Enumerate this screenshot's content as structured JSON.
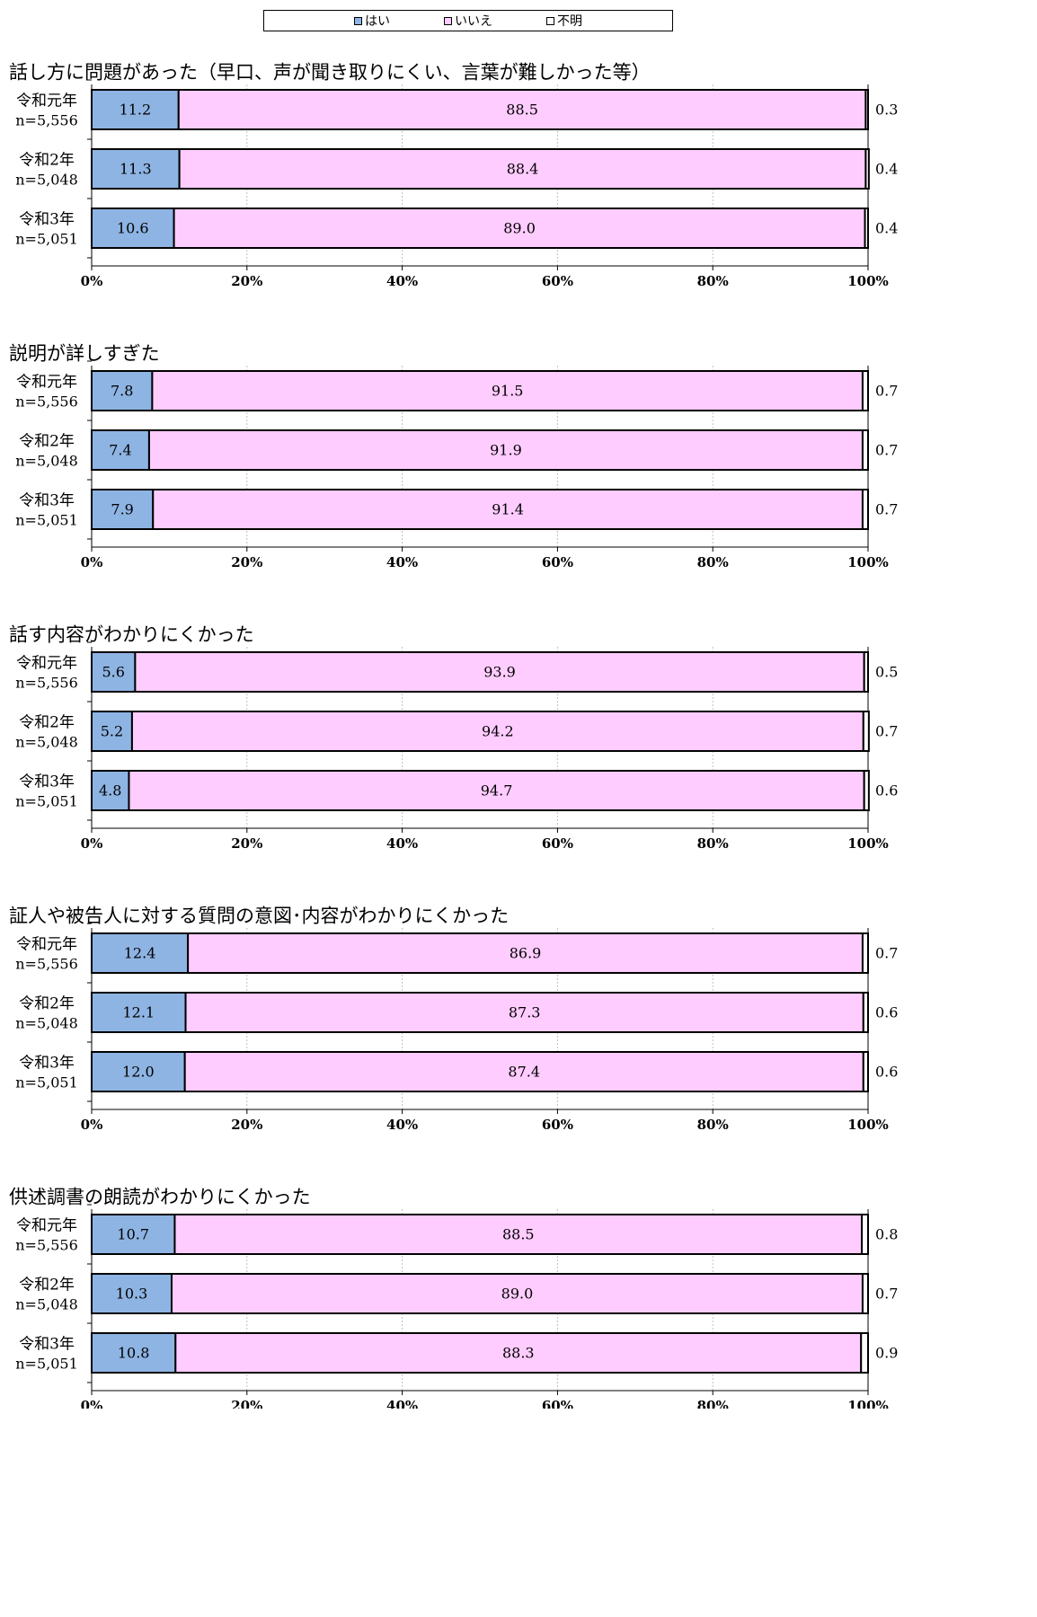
{
  "legend": [
    {
      "label": "はい",
      "color": "#8EB4E3"
    },
    {
      "label": "いいえ",
      "color": "#FFCCFF"
    },
    {
      "label": "不明",
      "color": "#FFFFFF"
    }
  ],
  "axis_ticks": [
    "0%",
    "20%",
    "40%",
    "60%",
    "80%",
    "100%"
  ],
  "chart_data": [
    {
      "type": "bar",
      "orientation": "horizontal",
      "stacked": true,
      "title": "話し方に問題があった（早口、声が聞き取りにくい、言葉が難しかった等）",
      "categories": [
        {
          "year": "令和元年",
          "n": "n=5,556"
        },
        {
          "year": "令和2年",
          "n": "n=5,048"
        },
        {
          "year": "令和3年",
          "n": "n=5,051"
        }
      ],
      "series": [
        {
          "name": "はい",
          "values": [
            11.2,
            11.3,
            10.6
          ],
          "labels": [
            "11.2",
            "11.3",
            "10.6"
          ]
        },
        {
          "name": "いいえ",
          "values": [
            88.5,
            88.4,
            89.0
          ],
          "labels": [
            "88.5",
            "88.4",
            "89.0"
          ]
        },
        {
          "name": "不明",
          "values": [
            0.3,
            0.4,
            0.4
          ],
          "labels": [
            "0.3",
            "0.4",
            "0.4"
          ]
        }
      ],
      "xlim": [
        0,
        100
      ]
    },
    {
      "type": "bar",
      "orientation": "horizontal",
      "stacked": true,
      "title": "説明が詳しすぎた",
      "categories": [
        {
          "year": "令和元年",
          "n": "n=5,556"
        },
        {
          "year": "令和2年",
          "n": "n=5,048"
        },
        {
          "year": "令和3年",
          "n": "n=5,051"
        }
      ],
      "series": [
        {
          "name": "はい",
          "values": [
            7.8,
            7.4,
            7.9
          ],
          "labels": [
            "7.8",
            "7.4",
            "7.9"
          ]
        },
        {
          "name": "いいえ",
          "values": [
            91.5,
            91.9,
            91.4
          ],
          "labels": [
            "91.5",
            "91.9",
            "91.4"
          ]
        },
        {
          "name": "不明",
          "values": [
            0.7,
            0.7,
            0.7
          ],
          "labels": [
            "0.7",
            "0.7",
            "0.7"
          ]
        }
      ],
      "xlim": [
        0,
        100
      ]
    },
    {
      "type": "bar",
      "orientation": "horizontal",
      "stacked": true,
      "title": "話す内容がわかりにくかった",
      "categories": [
        {
          "year": "令和元年",
          "n": "n=5,556"
        },
        {
          "year": "令和2年",
          "n": "n=5,048"
        },
        {
          "year": "令和3年",
          "n": "n=5,051"
        }
      ],
      "series": [
        {
          "name": "はい",
          "values": [
            5.6,
            5.2,
            4.8
          ],
          "labels": [
            "5.6",
            "5.2",
            "4.8"
          ]
        },
        {
          "name": "いいえ",
          "values": [
            93.9,
            94.2,
            94.7
          ],
          "labels": [
            "93.9",
            "94.2",
            "94.7"
          ]
        },
        {
          "name": "不明",
          "values": [
            0.5,
            0.7,
            0.6
          ],
          "labels": [
            "0.5",
            "0.7",
            "0.6"
          ]
        }
      ],
      "xlim": [
        0,
        100
      ]
    },
    {
      "type": "bar",
      "orientation": "horizontal",
      "stacked": true,
      "title": "証人や被告人に対する質問の意図･内容がわかりにくかった",
      "categories": [
        {
          "year": "令和元年",
          "n": "n=5,556"
        },
        {
          "year": "令和2年",
          "n": "n=5,048"
        },
        {
          "year": "令和3年",
          "n": "n=5,051"
        }
      ],
      "series": [
        {
          "name": "はい",
          "values": [
            12.4,
            12.1,
            12.0
          ],
          "labels": [
            "12.4",
            "12.1",
            "12.0"
          ]
        },
        {
          "name": "いいえ",
          "values": [
            86.9,
            87.3,
            87.4
          ],
          "labels": [
            "86.9",
            "87.3",
            "87.4"
          ]
        },
        {
          "name": "不明",
          "values": [
            0.7,
            0.6,
            0.6
          ],
          "labels": [
            "0.7",
            "0.6",
            "0.6"
          ]
        }
      ],
      "xlim": [
        0,
        100
      ]
    },
    {
      "type": "bar",
      "orientation": "horizontal",
      "stacked": true,
      "title": "供述調書の朗読がわかりにくかった",
      "categories": [
        {
          "year": "令和元年",
          "n": "n=5,556"
        },
        {
          "year": "令和2年",
          "n": "n=5,048"
        },
        {
          "year": "令和3年",
          "n": "n=5,051"
        }
      ],
      "series": [
        {
          "name": "はい",
          "values": [
            10.7,
            10.3,
            10.8
          ],
          "labels": [
            "10.7",
            "10.3",
            "10.8"
          ]
        },
        {
          "name": "いいえ",
          "values": [
            88.5,
            89.0,
            88.3
          ],
          "labels": [
            "88.5",
            "89.0",
            "88.3"
          ]
        },
        {
          "name": "不明",
          "values": [
            0.8,
            0.7,
            0.9
          ],
          "labels": [
            "0.8",
            "0.7",
            "0.9"
          ]
        }
      ],
      "xlim": [
        0,
        100
      ]
    }
  ]
}
